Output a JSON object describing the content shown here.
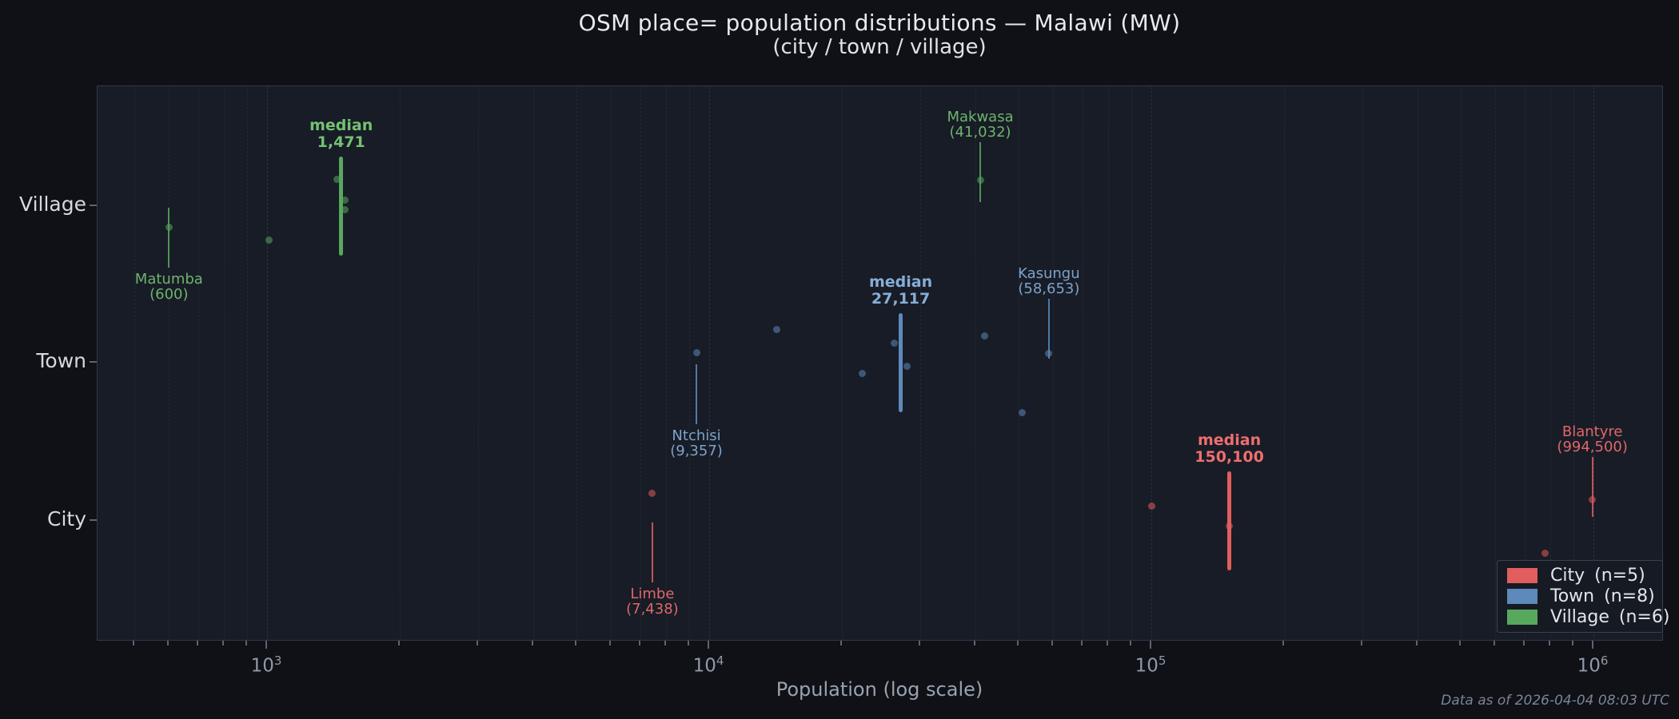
{
  "title": "OSM place= population distributions — Malawi (MW)",
  "subtitle": "(city / town / village)",
  "x_axis_label": "Population (log scale)",
  "footer": "Data as of 2026-04-04 08:03 UTC",
  "colors": {
    "background": "#0f1117",
    "plot_background": "#181c26",
    "city": "#e25d5e",
    "town": "#5d89bb",
    "village": "#58a85e"
  },
  "legend": {
    "position": "lower right",
    "items": [
      {
        "label": "City",
        "count": "(n=5)",
        "color": "#e25d5e"
      },
      {
        "label": "Town",
        "count": "(n=8)",
        "color": "#5d89bb"
      },
      {
        "label": "Village",
        "count": "(n=6)",
        "color": "#58a85e"
      }
    ]
  },
  "chart_data": {
    "type": "scatter",
    "variant": "horizontal-strip-plot",
    "title": "OSM place= population distributions — Malawi (MW) (city / town / village)",
    "xlabel": "Population (log scale)",
    "x_scale": "log10",
    "x_range_approx": [
      420,
      1400000
    ],
    "grid": "vertical dashed lines at all log minor/major ticks",
    "median_label_prefix": "median",
    "categories": [
      "Village",
      "Town",
      "City"
    ],
    "x_major_ticks": [
      {
        "base": "10",
        "exp": "3",
        "value": 1000
      },
      {
        "base": "10",
        "exp": "4",
        "value": 10000
      },
      {
        "base": "10",
        "exp": "5",
        "value": 100000
      },
      {
        "base": "10",
        "exp": "6",
        "value": 1000000
      }
    ],
    "series": [
      {
        "name": "Village",
        "n": 6,
        "color": "#58a85e",
        "text_color": "#74c173",
        "median": 1471,
        "median_text": "1,471",
        "points": [
          {
            "value": 600,
            "jitter": 26,
            "label": "Matumba",
            "value_text": "(600)",
            "label_side": "below"
          },
          {
            "value": 1009,
            "jitter": 42
          },
          {
            "value": 1442,
            "jitter": -34
          },
          {
            "value": 1500,
            "jitter": -8
          },
          {
            "value": 1500,
            "jitter": 4
          },
          {
            "value": 41032,
            "jitter": -33,
            "label": "Makwasa",
            "value_text": "(41,032)",
            "label_side": "above"
          }
        ]
      },
      {
        "name": "Town",
        "n": 8,
        "color": "#5d89bb",
        "text_color": "#85aed8",
        "median": 27117,
        "median_text": "27,117",
        "points": [
          {
            "value": 9357,
            "jitter": -13,
            "label": "Ntchisi",
            "value_text": "(9,357)",
            "label_side": "below"
          },
          {
            "value": 14200,
            "jitter": -42
          },
          {
            "value": 22200,
            "jitter": 13
          },
          {
            "value": 26234,
            "jitter": -25
          },
          {
            "value": 28000,
            "jitter": 4
          },
          {
            "value": 42000,
            "jitter": -34
          },
          {
            "value": 51000,
            "jitter": 62
          },
          {
            "value": 58653,
            "jitter": -12,
            "label": "Kasungu",
            "value_text": "(58,653)",
            "label_side": "above"
          }
        ]
      },
      {
        "name": "City",
        "n": 5,
        "color": "#e25d5e",
        "text_color": "#ef6e6e",
        "median": 150100,
        "median_text": "150,100",
        "points": [
          {
            "value": 7438,
            "jitter": -35,
            "label": "Limbe",
            "value_text": "(7,438)",
            "label_side": "below"
          },
          {
            "value": 100000,
            "jitter": -19
          },
          {
            "value": 150100,
            "jitter": 6
          },
          {
            "value": 776000,
            "jitter": 40
          },
          {
            "value": 994500,
            "jitter": -27,
            "label": "Blantyre",
            "value_text": "(994,500)",
            "label_side": "above"
          }
        ]
      }
    ]
  }
}
